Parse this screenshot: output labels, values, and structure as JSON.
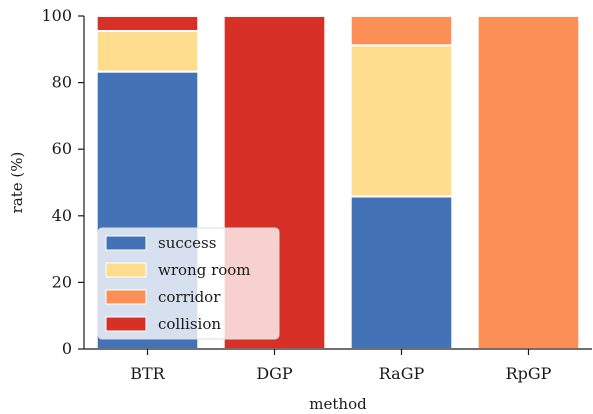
{
  "chart_data": {
    "type": "bar",
    "stacked": true,
    "categories": [
      "BTR",
      "DGP",
      "RaGP",
      "RpGP"
    ],
    "series": [
      {
        "name": "success",
        "color": "#4472b6",
        "values": [
          83.3,
          0,
          45.8,
          0
        ]
      },
      {
        "name": "wrong room",
        "color": "#fedd8e",
        "values": [
          12.2,
          0,
          45.4,
          0
        ]
      },
      {
        "name": "corridor",
        "color": "#fc8f56",
        "values": [
          0,
          0,
          8.8,
          100
        ]
      },
      {
        "name": "collision",
        "color": "#d73027",
        "values": [
          4.5,
          100,
          0,
          0
        ]
      }
    ],
    "xlabel": "method",
    "ylabel": "rate (%)",
    "ylim": [
      0,
      100
    ],
    "yticks": [
      0,
      20,
      40,
      60,
      80,
      100
    ],
    "grid": false,
    "legend_position": "lower-left"
  }
}
